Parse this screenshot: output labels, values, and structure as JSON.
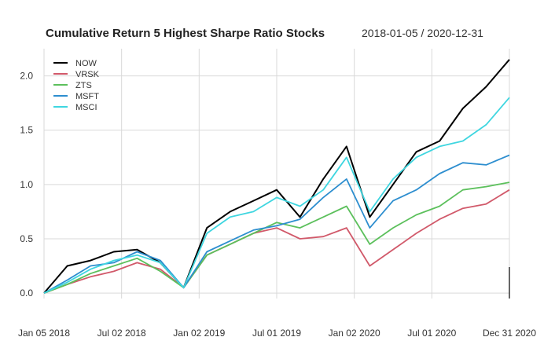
{
  "chart_data": {
    "type": "line",
    "title": "Cumulative Return 5 Highest Sharpe Ratio Stocks",
    "date_range": "2018-01-05 / 2020-12-31",
    "xlabel": "",
    "ylabel": "",
    "ylim": [
      -0.05,
      2.25
    ],
    "yticks": [
      0.0,
      0.5,
      1.0,
      1.5,
      2.0
    ],
    "ytick_labels": [
      "0.0",
      "0.5",
      "1.0",
      "1.5",
      "2.0"
    ],
    "x_ticks": [
      "Jan 05 2018",
      "Jul 02 2018",
      "Jan 02 2019",
      "Jul 01 2019",
      "Jan 02 2020",
      "Jul 01 2020",
      "Dec 31 2020"
    ],
    "x": [
      "Jan 05 2018",
      "Mar 2018",
      "May 2018",
      "Jul 02 2018",
      "Sep 2018",
      "Nov 2018",
      "Jan 02 2019",
      "Mar 2019",
      "May 2019",
      "Jul 01 2019",
      "Sep 2019",
      "Nov 2019",
      "Jan 02 2020",
      "Feb 2020",
      "Mar 2020",
      "Apr 2020",
      "May 2020",
      "Jul 01 2020",
      "Sep 2020",
      "Nov 2020",
      "Dec 31 2020"
    ],
    "grid": true,
    "legend_position": "top-left",
    "series": [
      {
        "name": "NOW",
        "color": "#000000",
        "values": [
          0.0,
          0.25,
          0.3,
          0.38,
          0.4,
          0.28,
          0.05,
          0.6,
          0.75,
          0.85,
          0.95,
          0.7,
          1.05,
          1.35,
          0.7,
          1.0,
          1.3,
          1.4,
          1.7,
          1.9,
          2.15
        ]
      },
      {
        "name": "VRSK",
        "color": "#d1596a",
        "values": [
          0.0,
          0.08,
          0.15,
          0.2,
          0.28,
          0.22,
          0.05,
          0.35,
          0.45,
          0.55,
          0.6,
          0.5,
          0.52,
          0.6,
          0.25,
          0.4,
          0.55,
          0.68,
          0.78,
          0.82,
          0.95
        ]
      },
      {
        "name": "ZTS",
        "color": "#5cc05c",
        "values": [
          0.0,
          0.08,
          0.18,
          0.25,
          0.32,
          0.2,
          0.05,
          0.35,
          0.45,
          0.55,
          0.65,
          0.6,
          0.7,
          0.8,
          0.45,
          0.6,
          0.72,
          0.8,
          0.95,
          0.98,
          1.02
        ]
      },
      {
        "name": "MSFT",
        "color": "#2d8ecf",
        "values": [
          0.0,
          0.12,
          0.25,
          0.28,
          0.38,
          0.3,
          0.05,
          0.38,
          0.48,
          0.58,
          0.62,
          0.68,
          0.88,
          1.05,
          0.6,
          0.85,
          0.95,
          1.1,
          1.2,
          1.18,
          1.27
        ]
      },
      {
        "name": "MSCI",
        "color": "#3fd6e0",
        "values": [
          0.0,
          0.1,
          0.22,
          0.3,
          0.35,
          0.28,
          0.05,
          0.55,
          0.7,
          0.75,
          0.88,
          0.8,
          0.95,
          1.25,
          0.75,
          1.05,
          1.25,
          1.35,
          1.4,
          1.55,
          1.8
        ]
      }
    ]
  }
}
